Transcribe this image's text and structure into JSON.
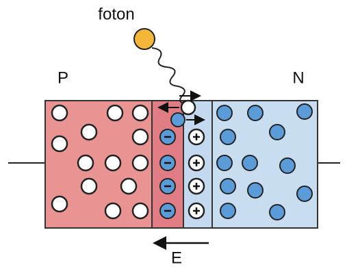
{
  "labels": {
    "photon": "foton",
    "p": "P",
    "n": "N",
    "field": "E"
  }
}
